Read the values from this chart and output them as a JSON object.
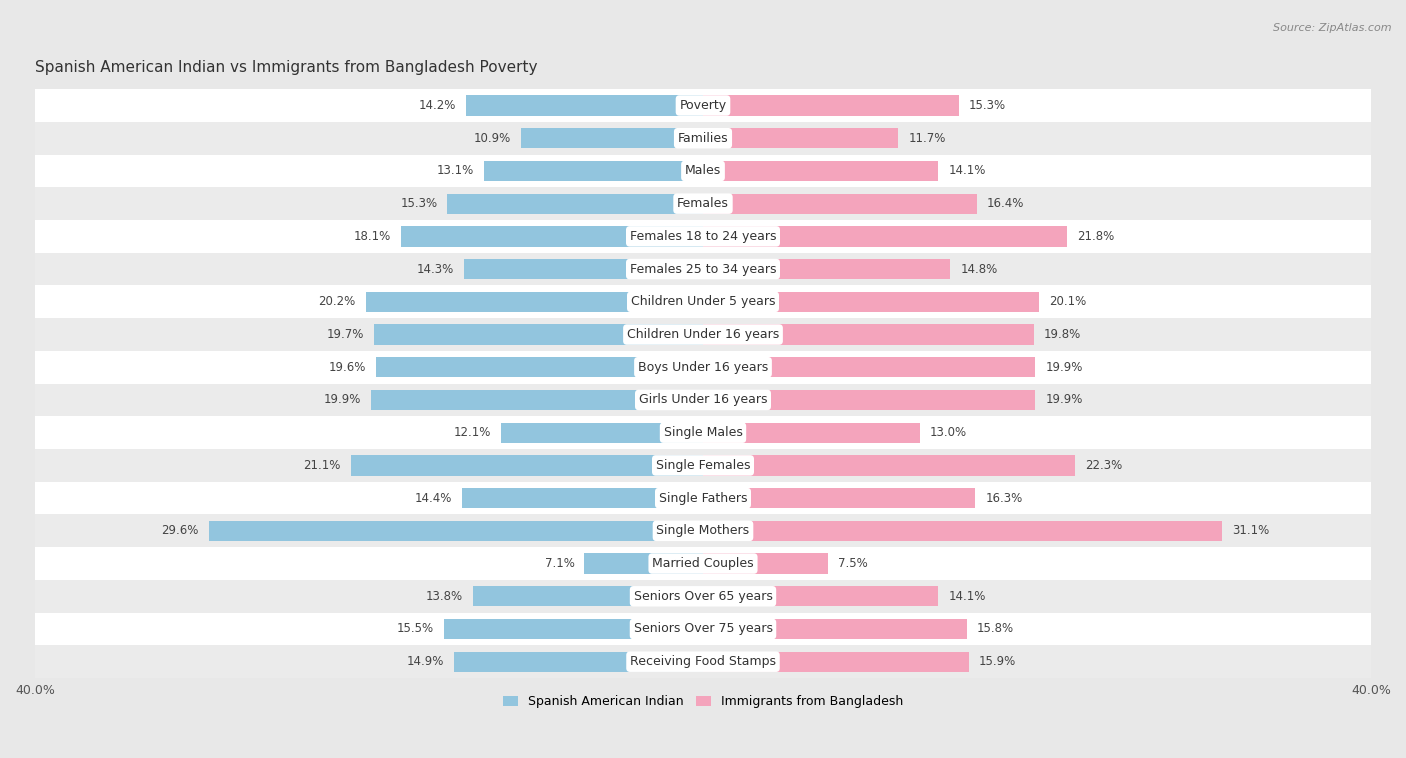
{
  "title": "Spanish American Indian vs Immigrants from Bangladesh Poverty",
  "source": "Source: ZipAtlas.com",
  "categories": [
    "Poverty",
    "Families",
    "Males",
    "Females",
    "Females 18 to 24 years",
    "Females 25 to 34 years",
    "Children Under 5 years",
    "Children Under 16 years",
    "Boys Under 16 years",
    "Girls Under 16 years",
    "Single Males",
    "Single Females",
    "Single Fathers",
    "Single Mothers",
    "Married Couples",
    "Seniors Over 65 years",
    "Seniors Over 75 years",
    "Receiving Food Stamps"
  ],
  "left_values": [
    14.2,
    10.9,
    13.1,
    15.3,
    18.1,
    14.3,
    20.2,
    19.7,
    19.6,
    19.9,
    12.1,
    21.1,
    14.4,
    29.6,
    7.1,
    13.8,
    15.5,
    14.9
  ],
  "right_values": [
    15.3,
    11.7,
    14.1,
    16.4,
    21.8,
    14.8,
    20.1,
    19.8,
    19.9,
    19.9,
    13.0,
    22.3,
    16.3,
    31.1,
    7.5,
    14.1,
    15.8,
    15.9
  ],
  "left_color": "#92c5de",
  "right_color": "#f4a4bc",
  "left_label": "Spanish American Indian",
  "right_label": "Immigrants from Bangladesh",
  "xlim": 40.0,
  "bg_color": "#e8e8e8",
  "row_color_even": "#ffffff",
  "row_color_odd": "#ebebeb",
  "title_fontsize": 11,
  "label_fontsize": 9,
  "value_fontsize": 8.5,
  "bar_height": 0.62
}
